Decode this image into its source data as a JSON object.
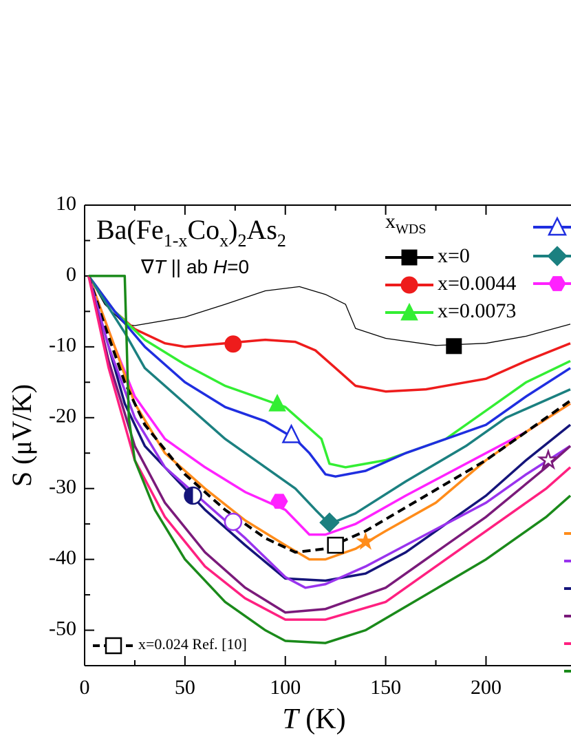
{
  "chart_data": {
    "type": "line",
    "title_parts": [
      "Ba(Fe",
      "1-x",
      "Co",
      "x",
      ")",
      "2",
      "As",
      "2"
    ],
    "annotation_parts": [
      "∇",
      "T",
      " || ab  ",
      "H",
      "=0"
    ],
    "legend_title_parts": [
      "x",
      "WDS"
    ],
    "x_label_parts": [
      "T",
      " (K)"
    ],
    "y_label": "S (μV/K)",
    "xlim": [
      0,
      242
    ],
    "ylim": [
      -55,
      10
    ],
    "xticks": [
      0,
      50,
      100,
      150,
      200
    ],
    "yticks": [
      10,
      0,
      -10,
      -20,
      -30,
      -40,
      -50
    ],
    "series": [
      {
        "name": "x=0",
        "color": "#000000",
        "width": 1.3,
        "marker": {
          "shape": "square",
          "x": 184,
          "y": -9.9
        },
        "x": [
          2,
          10,
          20,
          25,
          50,
          70,
          90,
          107,
          120,
          130,
          135,
          150,
          175,
          200,
          220,
          242
        ],
        "values": [
          0,
          -4,
          -6.8,
          -7,
          -5.8,
          -4,
          -2.1,
          -1.5,
          -2.6,
          -4,
          -7.4,
          -8.8,
          -9.8,
          -9.5,
          -8.5,
          -6.8
        ]
      },
      {
        "name": "x=0.0044",
        "color": "#ee1c1c",
        "marker": {
          "shape": "circle",
          "x": 74,
          "y": -9.6
        },
        "x": [
          2,
          15,
          25,
          40,
          50,
          70,
          90,
          105,
          115,
          125,
          135,
          150,
          170,
          200,
          220,
          242
        ],
        "values": [
          0,
          -5,
          -7.5,
          -9.5,
          -10,
          -9.5,
          -9,
          -9.3,
          -10.5,
          -13,
          -15.5,
          -16.3,
          -16,
          -14.5,
          -12,
          -9.5
        ]
      },
      {
        "name": "x=0.0073",
        "color": "#33ee33",
        "marker": {
          "shape": "triangle",
          "x": 96,
          "y": -18
        },
        "x": [
          2,
          15,
          30,
          50,
          70,
          85,
          100,
          110,
          118,
          122,
          130,
          150,
          180,
          200,
          220,
          242
        ],
        "values": [
          0,
          -5,
          -9,
          -12.5,
          -15.5,
          -17,
          -18.5,
          -21,
          -23,
          -26.5,
          -27,
          -26,
          -23,
          -19,
          -15,
          -12
        ]
      },
      {
        "color": "#1f2ee0",
        "marker": {
          "shape": "triangle-open",
          "x": 103,
          "y": -22.4
        },
        "x": [
          2,
          15,
          30,
          50,
          70,
          90,
          105,
          112,
          120,
          125,
          140,
          160,
          200,
          220,
          242
        ],
        "values": [
          0,
          -5,
          -10,
          -15,
          -18.5,
          -20.5,
          -23,
          -25,
          -28,
          -28.3,
          -27.5,
          -25,
          -21,
          -17,
          -13
        ]
      },
      {
        "color": "#1b8080",
        "marker": {
          "shape": "diamond",
          "x": 122,
          "y": -34.8
        },
        "x": [
          2,
          20,
          30,
          50,
          70,
          90,
          105,
          115,
          122,
          135,
          160,
          190,
          210,
          242
        ],
        "values": [
          0,
          -8,
          -13,
          -18,
          -23,
          -27,
          -30,
          -33,
          -35,
          -33.5,
          -29,
          -24,
          -20,
          -16
        ]
      },
      {
        "color": "#ff22ff",
        "marker": {
          "shape": "hexagon",
          "x": 97,
          "y": -31.8
        },
        "x": [
          2,
          15,
          25,
          40,
          60,
          80,
          100,
          112,
          120,
          135,
          160,
          200,
          220,
          242
        ],
        "values": [
          0,
          -10,
          -17,
          -23,
          -27,
          -30.5,
          -33,
          -36.5,
          -36.5,
          -35,
          -31,
          -25,
          -22,
          -18
        ]
      },
      {
        "color": "#ff8c1a",
        "marker": {
          "shape": "star",
          "x": 140,
          "y": -37.5
        },
        "x": [
          2,
          15,
          25,
          40,
          60,
          80,
          100,
          112,
          120,
          135,
          150,
          175,
          200,
          220,
          242
        ],
        "values": [
          0,
          -10,
          -18,
          -25,
          -30,
          -34.5,
          -38,
          -40,
          -40,
          -38.5,
          -36,
          -32,
          -26,
          -22,
          -18
        ]
      },
      {
        "name": "x=0.024 Ref. [10]",
        "color": "#000000",
        "dash": true,
        "marker": {
          "shape": "square-open",
          "x": 125,
          "y": -38
        },
        "x": [
          2,
          10,
          20,
          30,
          50,
          70,
          90,
          105,
          120,
          140,
          170,
          200,
          220,
          242
        ],
        "values": [
          0,
          -7,
          -15,
          -21,
          -28,
          -33,
          -37,
          -39,
          -38.5,
          -36,
          -31,
          -26,
          -22,
          -17.6
        ]
      },
      {
        "color": "#14147a",
        "marker": {
          "shape": "half-circle",
          "x": 54,
          "y": -31
        },
        "x": [
          2,
          10,
          20,
          30,
          50,
          60,
          80,
          100,
          120,
          140,
          160,
          200,
          220,
          242
        ],
        "values": [
          0,
          -8,
          -18,
          -24,
          -30,
          -33,
          -38,
          -42.7,
          -43,
          -42,
          -39,
          -31,
          -26,
          -21
        ]
      },
      {
        "color": "#9933ee",
        "marker": {
          "shape": "circle-open",
          "x": 74,
          "y": -34.7
        },
        "x": [
          2,
          12,
          25,
          40,
          60,
          80,
          100,
          110,
          120,
          140,
          160,
          200,
          220,
          242
        ],
        "values": [
          0,
          -10,
          -20,
          -27,
          -32,
          -37,
          -42.5,
          -44,
          -43.5,
          -41,
          -38,
          -32,
          -28,
          -24
        ]
      },
      {
        "color": "#7a1a7a",
        "marker": {
          "shape": "star-open",
          "x": 231,
          "y": -26
        },
        "x": [
          2,
          12,
          25,
          40,
          60,
          80,
          100,
          120,
          150,
          180,
          200,
          230,
          242
        ],
        "values": [
          0,
          -12,
          -24,
          -32,
          -39,
          -44,
          -47.5,
          -47,
          -44,
          -38,
          -34,
          -27,
          -24
        ]
      },
      {
        "color": "#ff2080",
        "x": [
          2,
          12,
          25,
          40,
          60,
          80,
          100,
          120,
          150,
          180,
          200,
          230,
          242
        ],
        "values": [
          0,
          -13,
          -26,
          -34,
          -41,
          -45.5,
          -48.5,
          -48.5,
          -46,
          -40,
          -36,
          -30,
          -27
        ]
      },
      {
        "color": "#1a8a1a",
        "x": [
          2,
          10,
          20,
          21,
          22,
          25,
          35,
          50,
          70,
          90,
          100,
          120,
          140,
          170,
          200,
          230,
          242
        ],
        "values": [
          0,
          0,
          0,
          -10,
          -20,
          -26,
          -33,
          -40,
          -46,
          -50,
          -51.5,
          -51.8,
          -50,
          -45,
          -40,
          -34,
          -31
        ]
      }
    ]
  }
}
